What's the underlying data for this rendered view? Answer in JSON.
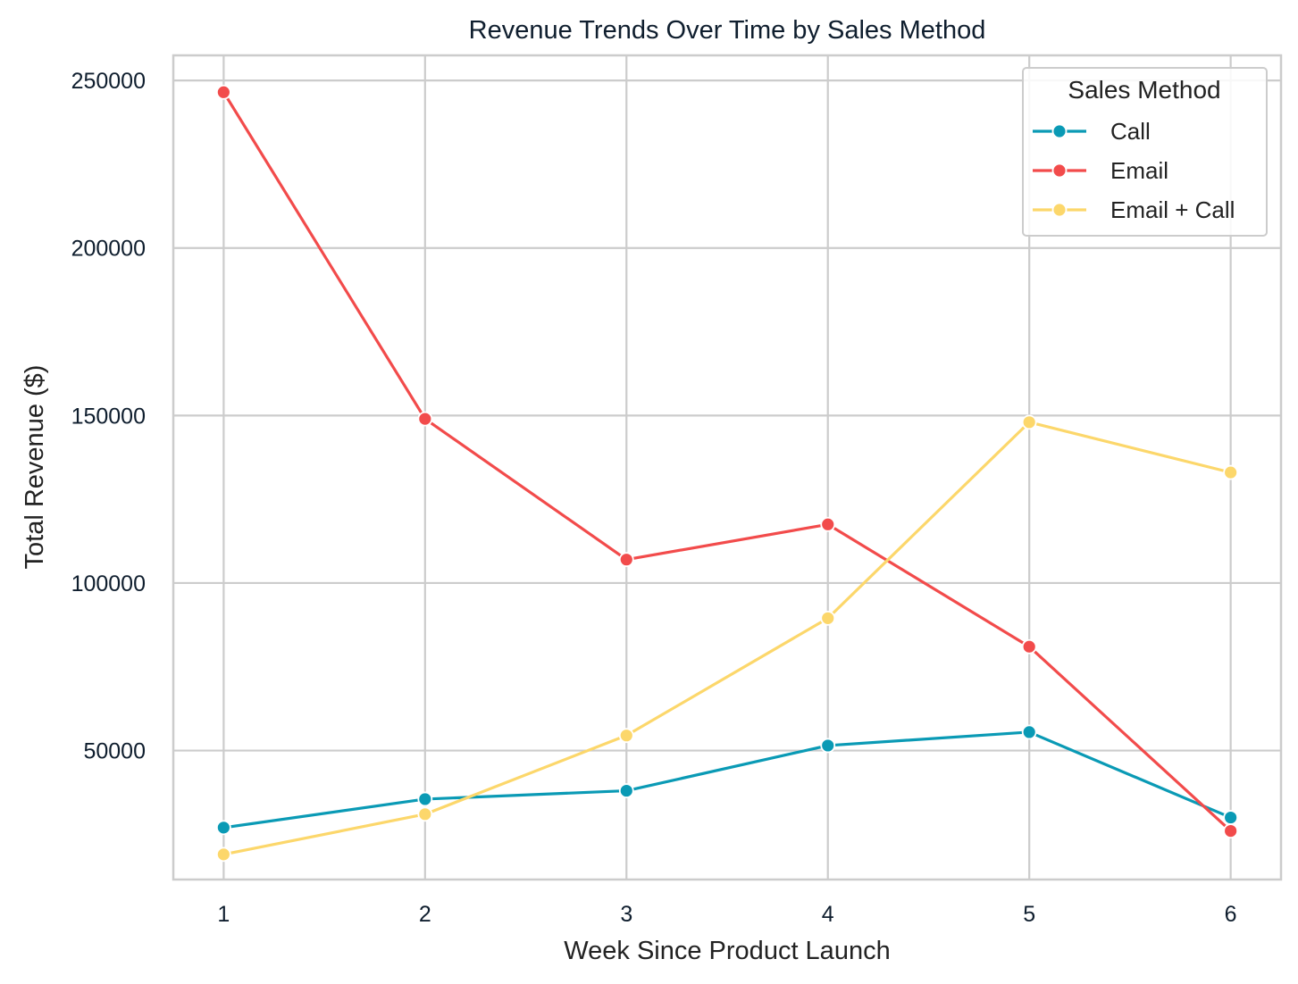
{
  "chart_data": {
    "type": "line",
    "title": "Revenue Trends Over Time by Sales Method",
    "xlabel": "Week Since Product Launch",
    "ylabel": "Total Revenue ($)",
    "x": [
      1,
      2,
      3,
      4,
      5,
      6
    ],
    "x_ticks": [
      "1",
      "2",
      "3",
      "4",
      "5",
      "6"
    ],
    "y_ticks": [
      "50000",
      "100000",
      "150000",
      "200000",
      "250000"
    ],
    "xlim": [
      0.75,
      6.25
    ],
    "ylim": [
      11500,
      257500
    ],
    "grid": true,
    "legend": {
      "title": "Sales Method",
      "placement": "top-right"
    },
    "series": [
      {
        "name": "Call",
        "color": "#0a9ab5",
        "values": [
          27000,
          35500,
          38000,
          51500,
          55500,
          30000
        ]
      },
      {
        "name": "Email",
        "color": "#f24b4b",
        "values": [
          246500,
          149000,
          107000,
          117500,
          81000,
          26000
        ]
      },
      {
        "name": "Email + Call",
        "color": "#fcd76b",
        "values": [
          19000,
          31000,
          54500,
          89500,
          148000,
          133000
        ]
      }
    ]
  }
}
